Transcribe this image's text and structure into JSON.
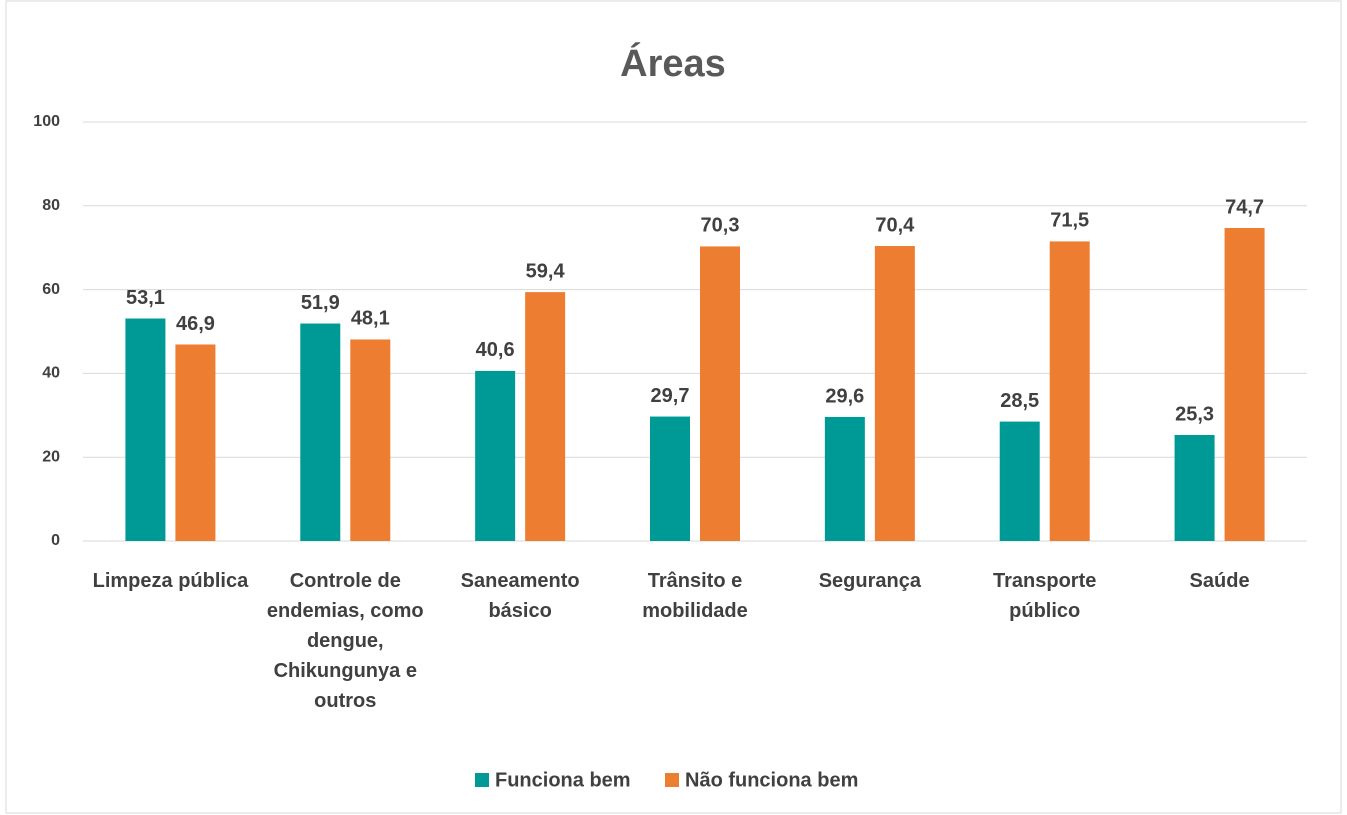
{
  "chart_data": {
    "type": "bar",
    "title": "Áreas",
    "categories": [
      "Limpeza pública",
      "Controle de endemias, como dengue, Chikungunya e outros",
      "Saneamento básico",
      "Trânsito e mobilidade",
      "Segurança",
      "Transporte público",
      "Saúde"
    ],
    "series": [
      {
        "name": "Funciona bem",
        "color": "#009a96",
        "values": [
          53.1,
          51.9,
          40.6,
          29.7,
          29.6,
          28.5,
          25.3
        ],
        "value_labels": [
          "53,1",
          "51,9",
          "40,6",
          "29,7",
          "29,6",
          "28,5",
          "25,3"
        ]
      },
      {
        "name": "Não funciona bem",
        "color": "#ed7d31",
        "values": [
          46.9,
          48.1,
          59.4,
          70.3,
          70.4,
          71.5,
          74.7
        ],
        "value_labels": [
          "46,9",
          "48,1",
          "59,4",
          "70,3",
          "70,4",
          "71,5",
          "74,7"
        ]
      }
    ],
    "ylim": [
      0,
      100
    ],
    "yticks": [
      0,
      20,
      40,
      60,
      80,
      100
    ],
    "grid": true,
    "legend": "bottom"
  }
}
